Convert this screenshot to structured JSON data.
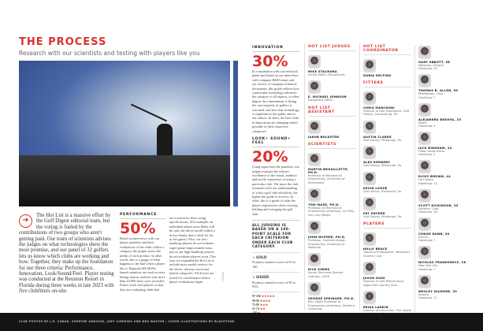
{
  "header": {
    "title": "THE PROCESS",
    "subtitle": "Research with our scientists and testing with players like you"
  },
  "intro": "The Hot List is a massive effort by the Golf Digest editorial team, but the voting is fueled by the contributions of two groups who aren't getting paid. Our team of scientists advises the judges on what technologies show the most promise, and our panel of 32 golfers lets us know which clubs are working and how. Together, they make up the foundation for our three criteria: Performance, Innovation, Look/Sound/Feel. Player testing was conducted at the Reunion Resort in Florida during three weeks in late 2023 with five clubfitters on-site.",
  "performance": {
    "label": "PERFORMANCE",
    "pct": "50%",
    "text1": "Based on interviews with our player panelists and their evaluations of the clubs within a category, the judges assess the utility of each product. In other words, this is a gauge of what happens to the ball when a player hits it. Rapsodo MLM2Pro launch monitors are used at every hitting station, and this year more than 24,000 shots were recorded. Fitters work with players so that they are evaluating clubs that",
    "text2": "are a match for their swing specifications. (For example, an individual player most likely will hit only the driver model within a driver family that is ideal for his or her game.) Also, our low-handicap players do not evaluate super-game-improvement irons, just as our high-handicap players do not evaluate players irons. This year we expanded the Hot List to include more model reviews for the driver, fairway-wood and hybrid categories. All drivers are tested for conformance before player evaluations begin."
  },
  "photo_credit": "JJ Gibbs",
  "innovation": {
    "label": "INNOVATION",
    "pct": "30%",
    "text": "In consultation with our technical panel and based on our interviews with company R&D teams and our review of company technical documents, this grade reflects how a particular technology advances the category to all aspects, to what degree the commitment is fitting the vast majority of golfers is executed, and how that technology is explained to the public and to our editors. In short, the best clubs in Innovation are changing what's possible in their respective categories."
  },
  "lsf": {
    "label": "LOOK• SOUND• FEEL",
    "pct": "20%",
    "text": "Using input from the panelists, our judges evaluate the relative excellence of the visual, auditory and tactile experience of using a particular club. The more the club resonates with our understanding of what a golf club should be, the higher the grade it receives. In short, this is a grade of what the player experiences when viewing, holding and swinging the golf club."
  },
  "judging": {
    "note": "ALL JUDGING IS BASED ON A 100-POINT SCALE FOR EACH CRITERION UNDER EACH CLUB CATEGORY.",
    "gold_label": "GOLD",
    "gold_text": "Products earned a score of 93 to 100.",
    "silver_label": "SILVER",
    "silver_text": "Products earned a score of 86 to 92%.",
    "scale": [
      {
        "range": "97-100",
        "stars": "★★★★★"
      },
      {
        "range": "90-96",
        "stars": "★★★★"
      },
      {
        "range": "75-89",
        "stars": "★★★"
      },
      {
        "range": "51-74",
        "stars": "★★"
      },
      {
        "range": "<50",
        "stars": "★"
      }
    ]
  },
  "col1": [
    {
      "heading": "HOT LIST JUDGES",
      "people": [
        {
          "name": "MIKE STACHURA",
          "desc": "Senior Editor (Equipment)"
        },
        {
          "name": "E. MICHAEL JOHNSON",
          "desc": "Equipment Editor"
        }
      ]
    },
    {
      "heading": "HOT LIST ASSISTANT",
      "people": [
        {
          "name": "JAKOB BOLUSTEN",
          "desc": ""
        }
      ]
    },
    {
      "heading": "SCIENTISTS",
      "people": [
        {
          "name": "MARTIN BROUILLETTE, PH.D.",
          "desc": "Professor of Mechanical Engineering, University of Sherbrooke"
        },
        {
          "name": "TOM MASE, PH.D.",
          "desc": "Professor of Mechanical Engineering (emeritus), Cal Poly-San Luis Obispo"
        },
        {
          "name": "JOHN MCPHEE, PH.D.",
          "desc": "Professor, Systems Design Engineering, University of Waterloo"
        },
        {
          "name": "RICK SIMMS",
          "desc": "Senior Technical Director (retired), USGA"
        },
        {
          "name": "GEORGE SPRINGER, PH.D.",
          "desc": "Paul Pigott Professor of Engineering (emeritus), Stanford University"
        }
      ]
    }
  ],
  "col2": [
    {
      "heading": "HOT LIST COORDINATOR",
      "people": [
        {
          "name": "DANIA DELFINO",
          "desc": ""
        }
      ]
    },
    {
      "heading": "FITTERS",
      "people": [
        {
          "name": "CHRIS MARCHONI",
          "desc": "Director of Golf Experience, Golf Galaxy, Canonsburg, Pa."
        },
        {
          "name": "AUSTIN CLARKE",
          "desc": "Golf Galaxy, Pittsburgh, Pa."
        },
        {
          "name": "ALEX KENNEDY",
          "desc": "Golf Galaxy, Pittsburgh, Pa."
        },
        {
          "name": "KEVIN LOGUE",
          "desc": "Golf Galaxy, Richmond, Va."
        },
        {
          "name": "PAT SNYDER",
          "desc": "Golf Galaxy, Pittsburgh, Pa."
        }
      ]
    },
    {
      "heading": "PLAYERS",
      "people": [
        {
          "name": "HOLLY BRACE",
          "desc": "Teaching Professional, Westmoor Country Club"
        },
        {
          "name": "JASON GUSS",
          "desc": "Director of Golf Performance, Naperville Country Club"
        },
        {
          "name": "ERIKA LARKIN",
          "desc": "Director of Instruction, The Stable at Creighton Farms"
        }
      ]
    }
  ],
  "players": [
    {
      "name": "GARY ABBOTT, 38",
      "desc": "Waterloo, Ontario",
      "hcp": "Handicap: 15"
    },
    {
      "name": "THOMAS B. ALLEN, 55",
      "desc": "Middletown, Ohio",
      "hcp": "Handicap: 7"
    },
    {
      "name": "ALEJANDRA BEDOYA, 25",
      "desc": "Miami",
      "hcp": "Handicap: 5"
    },
    {
      "name": "JACK BINGHAM, 24",
      "desc": "Hilton Head Island",
      "hcp": "Handicap: 1"
    },
    {
      "name": "RICKY BROWN, 44",
      "desc": "Fort Worth",
      "hcp": "Handicap: 12"
    },
    {
      "name": "SCOTT DICKINSON, 33",
      "desc": "Littleton, Colo.",
      "hcp": "Handicap: 18"
    },
    {
      "name": "CONOR DUNN, 30",
      "desc": "Denver",
      "hcp": "Handicap: 7"
    },
    {
      "name": "NICOLAS FRANKOWICZ, 28",
      "desc": "New York City",
      "hcp": "Handicap: 7"
    },
    {
      "name": "WESLEY GILMORE, 29",
      "desc": "Atlanta",
      "hcp": "Handicap: 11"
    }
  ],
  "footer": {
    "credit": "CLUB PHOTOS BY J.D. CUBAN, SHERYNE ADDISON, JOEY CUMMINS AND BEN WALTON | COVER ILLUSTRATIONS BY BLACKTONE"
  },
  "colors": {
    "accent": "#d8322b",
    "footer": "#141414"
  }
}
